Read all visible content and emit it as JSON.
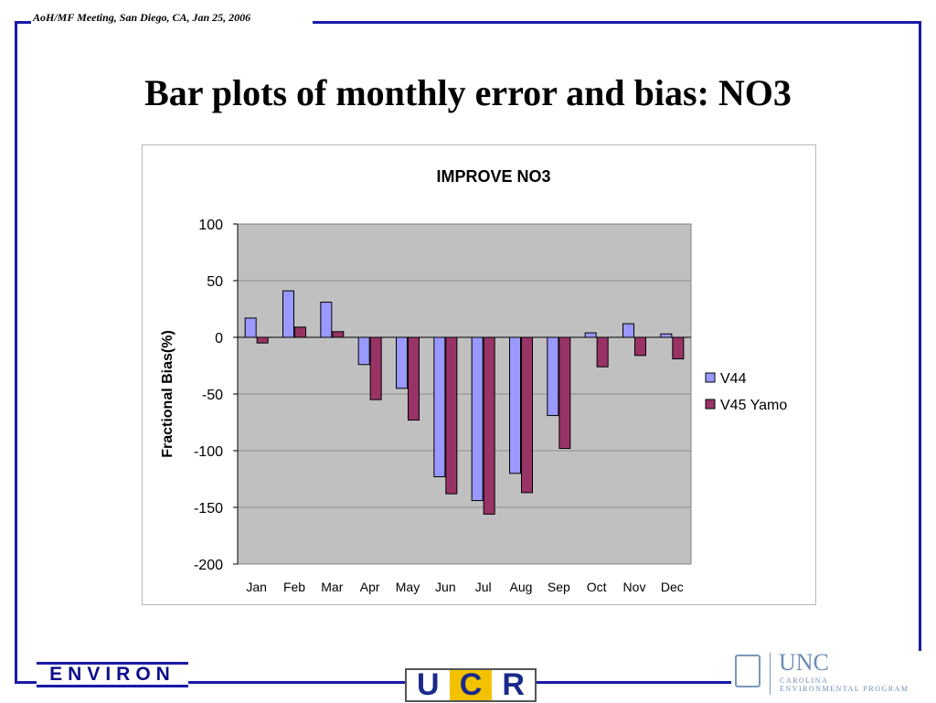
{
  "header": {
    "meeting_note": "AoH/MF Meeting, San Diego, CA,  Jan 25, 2006"
  },
  "slide": {
    "title": "Bar plots of monthly error and bias: NO3"
  },
  "colors": {
    "frame": "#1a1aa6",
    "v44": "#9999ff",
    "v45": "#993366",
    "plot_bg": "#c0c0c0"
  },
  "chart_data": {
    "type": "bar",
    "title": "IMPROVE NO3",
    "ylabel": "Fractional Bias(%)",
    "xlabel": "",
    "ylim": [
      -200,
      100
    ],
    "yticks": [
      100,
      50,
      0,
      -50,
      -100,
      -150,
      -200
    ],
    "categories": [
      "Jan",
      "Feb",
      "Mar",
      "Apr",
      "May",
      "Jun",
      "Jul",
      "Aug",
      "Sep",
      "Oct",
      "Nov",
      "Dec"
    ],
    "series": [
      {
        "name": "V44",
        "values": [
          17,
          41,
          31,
          -24,
          -45,
          -123,
          -144,
          -120,
          -69,
          4,
          12,
          3
        ]
      },
      {
        "name": "V45 Yamo",
        "values": [
          -5,
          9,
          5,
          -55,
          -73,
          -138,
          -156,
          -137,
          -98,
          -26,
          -16,
          -19
        ]
      }
    ],
    "legend_position": "right",
    "grid": true
  },
  "logos": {
    "environ": "ENVIRON",
    "ucr": [
      "U",
      "C",
      "R"
    ],
    "unc": {
      "name": "UNC",
      "line1": "CAROLINA",
      "line2": "ENVIRONMENTAL PROGRAM"
    }
  }
}
